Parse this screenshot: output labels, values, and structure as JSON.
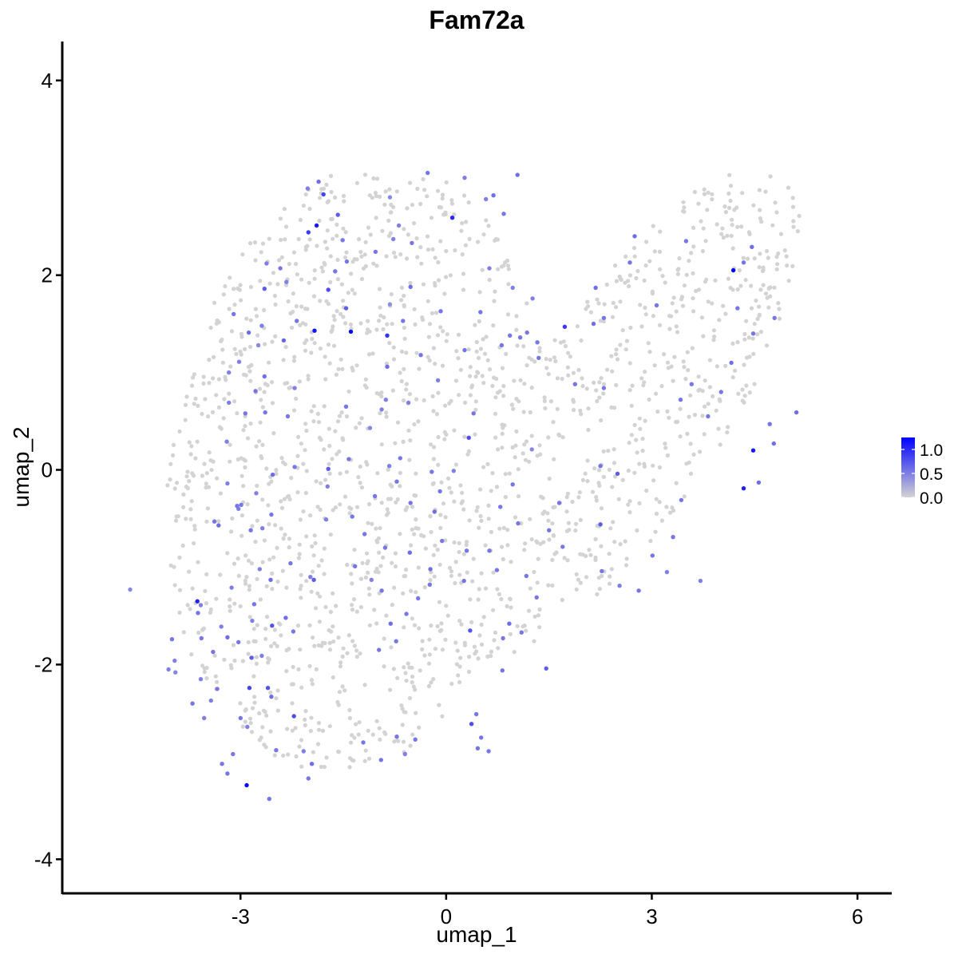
{
  "chart_data": {
    "type": "scatter",
    "title": "Fam72a",
    "xlabel": "umap_1",
    "ylabel": "umap_2",
    "xlim": [
      -5.6,
      6.5
    ],
    "ylim": [
      -4.35,
      4.4
    ],
    "x_ticks": [
      -3,
      0,
      3,
      6
    ],
    "x_tick_labels": [
      "-3",
      "0",
      "3",
      "6"
    ],
    "y_ticks": [
      -4,
      -2,
      0,
      2,
      4
    ],
    "y_tick_labels": [
      "-4",
      "-2",
      "0",
      "2",
      "4"
    ],
    "grid": false,
    "legend_position": "right",
    "color_scale": {
      "low": "#d3d3d3",
      "high": "#0000ff",
      "min": 0,
      "max": 1.25,
      "breaks": [
        0.0,
        0.5,
        1.0
      ],
      "break_labels": [
        "0.0",
        "0.5",
        "1.0"
      ]
    },
    "points": [
      [
        -1.39,
        1.42,
        1.2
      ],
      [
        -1.92,
        1.43,
        1.15
      ],
      [
        -0.86,
        1.38,
        0.95
      ],
      [
        -2.65,
        1.86,
        0.7
      ],
      [
        -1.72,
        1.85,
        0.8
      ],
      [
        -2.88,
        1.41,
        0.6
      ],
      [
        -3.1,
        1.6,
        0.55
      ],
      [
        -2.37,
        1.33,
        0.65
      ],
      [
        -2.01,
        2.44,
        0.9
      ],
      [
        -1.89,
        2.51,
        1.1
      ],
      [
        -1.79,
        2.83,
        0.85
      ],
      [
        -1.58,
        2.62,
        0.7
      ],
      [
        -1.86,
        2.96,
        0.6
      ],
      [
        -0.5,
        2.33,
        0.55
      ],
      [
        -0.52,
        1.88,
        0.6
      ],
      [
        -1.46,
        1.66,
        0.7
      ],
      [
        -0.63,
        1.53,
        0.55
      ],
      [
        -0.82,
        1.7,
        0.4
      ],
      [
        -2.69,
        1.48,
        0.5
      ],
      [
        -2.74,
        1.28,
        0.45
      ],
      [
        -2.33,
        1.93,
        0.5
      ],
      [
        -2.18,
        1.53,
        0.55
      ],
      [
        -0.86,
        1.06,
        0.6
      ],
      [
        -0.37,
        1.18,
        0.55
      ],
      [
        0.09,
        2.59,
        1.0
      ],
      [
        0.27,
        3.0,
        0.5
      ],
      [
        -0.82,
        2.8,
        0.45
      ],
      [
        -0.27,
        3.05,
        0.55
      ],
      [
        0.69,
        2.82,
        0.6
      ],
      [
        0.58,
        2.78,
        0.5
      ],
      [
        1.04,
        3.03,
        0.6
      ],
      [
        0.84,
        2.63,
        0.55
      ],
      [
        -2.65,
        0.96,
        0.6
      ],
      [
        -2.78,
        0.81,
        0.55
      ],
      [
        -3.17,
        0.69,
        0.5
      ],
      [
        -2.93,
        0.58,
        0.55
      ],
      [
        -2.21,
        0.84,
        0.5
      ],
      [
        -2.31,
        0.55,
        0.55
      ],
      [
        -3.2,
        0.29,
        0.5
      ],
      [
        -2.64,
        0.59,
        0.55
      ],
      [
        -1.46,
        0.65,
        0.55
      ],
      [
        -0.88,
        0.72,
        0.5
      ],
      [
        -1.11,
        0.43,
        0.45
      ],
      [
        -1.42,
        0.11,
        0.55
      ],
      [
        -0.55,
        0.69,
        0.5
      ],
      [
        -0.94,
        0.62,
        0.5
      ],
      [
        -2.53,
        -0.05,
        0.6
      ],
      [
        -2.21,
        0.03,
        0.55
      ],
      [
        -1.72,
        0.01,
        0.7
      ],
      [
        -1.73,
        -0.17,
        0.5
      ],
      [
        -3.05,
        -0.37,
        0.55
      ],
      [
        -3.19,
        -0.14,
        0.5
      ],
      [
        -3.38,
        -0.53,
        0.55
      ],
      [
        -3.32,
        -0.57,
        0.6
      ],
      [
        -2.55,
        -0.46,
        0.55
      ],
      [
        -2.68,
        -0.6,
        0.5
      ],
      [
        -2.85,
        -0.62,
        0.55
      ],
      [
        -2.72,
        -1.02,
        0.5
      ],
      [
        -2.27,
        -0.96,
        0.55
      ],
      [
        -1.98,
        -1.1,
        0.5
      ],
      [
        -2.56,
        -1.13,
        0.6
      ],
      [
        -1.93,
        -1.13,
        0.7
      ],
      [
        -2.8,
        -1.38,
        0.55
      ],
      [
        -3.13,
        -1.21,
        0.5
      ],
      [
        -3.63,
        -1.35,
        1.05
      ],
      [
        -3.62,
        -1.47,
        0.55
      ],
      [
        -3.57,
        -1.73,
        0.55
      ],
      [
        -3.28,
        -1.61,
        0.5
      ],
      [
        -3.4,
        -1.87,
        0.55
      ],
      [
        -3.19,
        -1.72,
        0.6
      ],
      [
        -3.03,
        -1.77,
        0.55
      ],
      [
        -2.69,
        -1.91,
        0.5
      ],
      [
        -2.84,
        -1.93,
        0.7
      ],
      [
        -2.83,
        -1.55,
        0.5
      ],
      [
        -2.34,
        -1.52,
        0.6
      ],
      [
        -2.23,
        -1.66,
        0.55
      ],
      [
        -2.54,
        -1.6,
        0.75
      ],
      [
        -3.34,
        -2.25,
        0.55
      ],
      [
        -3.58,
        -2.15,
        0.5
      ],
      [
        -3.7,
        -2.4,
        0.55
      ],
      [
        -3.53,
        -2.55,
        0.5
      ],
      [
        -3.0,
        -2.55,
        0.55
      ],
      [
        -2.87,
        -2.24,
        0.85
      ],
      [
        -2.6,
        -2.24,
        0.75
      ],
      [
        -2.55,
        -2.33,
        0.6
      ],
      [
        -2.22,
        -2.53,
        0.8
      ],
      [
        -3.27,
        -3.02,
        0.55
      ],
      [
        -3.19,
        -3.12,
        0.55
      ],
      [
        -2.91,
        -3.24,
        1.2
      ],
      [
        -2.58,
        -3.38,
        0.55
      ],
      [
        -2.48,
        -2.88,
        0.55
      ],
      [
        -2.08,
        -2.89,
        0.5
      ],
      [
        -1.96,
        -3.02,
        0.6
      ],
      [
        -2.01,
        -3.17,
        0.55
      ],
      [
        -1.21,
        -2.8,
        0.55
      ],
      [
        -0.95,
        -2.98,
        0.55
      ],
      [
        -0.6,
        -2.92,
        0.5
      ],
      [
        -0.45,
        -2.77,
        0.55
      ],
      [
        -0.72,
        -2.74,
        0.55
      ],
      [
        0.37,
        -2.61,
        0.8
      ],
      [
        0.51,
        -2.75,
        0.55
      ],
      [
        0.46,
        -2.86,
        0.55
      ],
      [
        0.62,
        -2.89,
        0.55
      ],
      [
        0.44,
        -2.51,
        0.55
      ],
      [
        -1.75,
        -0.51,
        0.5
      ],
      [
        -1.37,
        -0.48,
        0.55
      ],
      [
        -1.04,
        -0.27,
        0.55
      ],
      [
        -0.67,
        0.12,
        0.55
      ],
      [
        -0.83,
        0.04,
        0.5
      ],
      [
        -0.72,
        -0.12,
        0.55
      ],
      [
        -0.52,
        -0.34,
        0.55
      ],
      [
        -0.21,
        -0.02,
        0.55
      ],
      [
        0.11,
        -0.01,
        0.5
      ],
      [
        0.33,
        0.33,
        0.8
      ],
      [
        -0.09,
        -0.22,
        0.55
      ],
      [
        -0.17,
        -0.43,
        0.6
      ],
      [
        -1.19,
        -0.66,
        0.55
      ],
      [
        -1.33,
        -0.99,
        0.55
      ],
      [
        -1.09,
        -1.13,
        0.5
      ],
      [
        -0.89,
        -0.8,
        0.55
      ],
      [
        -0.53,
        -0.85,
        0.6
      ],
      [
        -0.23,
        -1.02,
        0.6
      ],
      [
        -0.41,
        -1.32,
        0.55
      ],
      [
        -0.24,
        -1.18,
        0.55
      ],
      [
        -0.58,
        -1.48,
        0.55
      ],
      [
        -0.81,
        -1.58,
        0.6
      ],
      [
        -0.73,
        -1.76,
        0.55
      ],
      [
        -0.98,
        -1.85,
        0.55
      ],
      [
        0.3,
        -0.83,
        0.55
      ],
      [
        0.26,
        -1.14,
        0.55
      ],
      [
        0.35,
        -1.65,
        0.75
      ],
      [
        0.83,
        -1.73,
        0.55
      ],
      [
        0.92,
        -1.58,
        0.6
      ],
      [
        1.32,
        -1.31,
        0.55
      ],
      [
        1.1,
        -1.67,
        0.55
      ],
      [
        1.46,
        -2.04,
        0.7
      ],
      [
        1.17,
        -1.09,
        0.55
      ],
      [
        0.74,
        -1.03,
        0.55
      ],
      [
        0.63,
        -0.83,
        0.55
      ],
      [
        1.05,
        -0.55,
        0.55
      ],
      [
        0.79,
        -0.38,
        0.55
      ],
      [
        0.97,
        -0.15,
        0.55
      ],
      [
        1.65,
        -0.34,
        0.55
      ],
      [
        2.25,
        -0.56,
        0.7
      ],
      [
        2.5,
        -0.04,
        0.7
      ],
      [
        2.25,
        0.04,
        0.55
      ],
      [
        1.88,
        0.88,
        0.55
      ],
      [
        2.3,
        0.84,
        0.55
      ],
      [
        1.73,
        1.47,
        0.9
      ],
      [
        2.15,
        1.5,
        0.6
      ],
      [
        2.3,
        1.56,
        0.55
      ],
      [
        2.18,
        1.87,
        0.6
      ],
      [
        2.75,
        2.4,
        0.6
      ],
      [
        2.68,
        2.13,
        0.55
      ],
      [
        3.07,
        1.69,
        0.55
      ],
      [
        3.5,
        2.35,
        0.55
      ],
      [
        4.19,
        2.05,
        1.25
      ],
      [
        4.34,
        2.13,
        0.55
      ],
      [
        4.46,
        2.29,
        0.6
      ],
      [
        4.25,
        1.66,
        0.55
      ],
      [
        4.48,
        1.4,
        0.55
      ],
      [
        4.16,
        1.1,
        0.6
      ],
      [
        4.79,
        1.56,
        0.55
      ],
      [
        3.58,
        0.88,
        0.55
      ],
      [
        3.42,
        0.72,
        0.55
      ],
      [
        3.82,
        0.55,
        0.55
      ],
      [
        4.01,
        0.8,
        0.55
      ],
      [
        4.72,
        0.47,
        0.55
      ],
      [
        5.11,
        0.59,
        0.6
      ],
      [
        4.78,
        0.27,
        0.6
      ],
      [
        4.48,
        0.2,
        1.1
      ],
      [
        4.34,
        -0.19,
        1.05
      ],
      [
        4.56,
        -0.13,
        0.6
      ],
      [
        3.43,
        -0.31,
        0.55
      ],
      [
        3.31,
        -0.69,
        0.55
      ],
      [
        3.01,
        -0.88,
        0.55
      ],
      [
        2.81,
        -1.24,
        0.55
      ],
      [
        2.27,
        -1.04,
        0.55
      ],
      [
        1.7,
        -0.79,
        0.55
      ],
      [
        1.5,
        -0.62,
        0.55
      ],
      [
        -4.61,
        -1.23,
        0.45
      ],
      [
        -3.96,
        -1.96,
        0.5
      ],
      [
        -4.0,
        -1.74,
        0.55
      ],
      [
        -4.05,
        -2.05,
        0.5
      ],
      [
        -3.95,
        -2.08,
        0.45
      ],
      [
        -0.08,
        1.63,
        0.55
      ],
      [
        -0.12,
        0.92,
        0.5
      ],
      [
        0.27,
        1.23,
        0.55
      ],
      [
        0.5,
        1.62,
        0.55
      ],
      [
        0.93,
        1.38,
        0.55
      ],
      [
        0.81,
        1.28,
        0.55
      ],
      [
        1.08,
        1.36,
        0.55
      ],
      [
        1.18,
        1.41,
        0.55
      ],
      [
        1.33,
        1.31,
        0.55
      ],
      [
        1.35,
        1.15,
        0.55
      ],
      [
        -2.42,
        2.07,
        0.55
      ],
      [
        -2.62,
        2.12,
        0.5
      ],
      [
        -2.02,
        2.89,
        0.5
      ],
      [
        -1.62,
        2.04,
        0.55
      ],
      [
        -1.51,
        2.36,
        0.55
      ],
      [
        -1.03,
        2.24,
        0.55
      ],
      [
        -0.69,
        2.51,
        0.5
      ],
      [
        -1.45,
        2.14,
        0.55
      ],
      [
        -0.77,
        2.37,
        0.5
      ],
      [
        0.63,
        2.07,
        0.5
      ],
      [
        0.97,
        1.87,
        0.5
      ],
      [
        1.26,
        1.76,
        0.5
      ],
      [
        -3.02,
        1.11,
        0.5
      ],
      [
        -3.17,
        1.0,
        0.5
      ],
      [
        -2.99,
        -0.36,
        0.55
      ],
      [
        -3.03,
        -0.4,
        0.5
      ],
      [
        -2.77,
        -0.24,
        0.5
      ],
      [
        -3.58,
        -1.39,
        0.5
      ],
      [
        -3.43,
        -2.37,
        0.5
      ],
      [
        -3.11,
        -2.92,
        0.55
      ],
      [
        -2.9,
        -2.64,
        0.5
      ],
      [
        -0.94,
        -1.24,
        0.55
      ],
      [
        0.4,
        0.58,
        0.55
      ],
      [
        -0.06,
        -0.73,
        0.55
      ],
      [
        0.82,
        -2.06,
        0.55
      ],
      [
        1.25,
        0.21,
        0.45
      ],
      [
        2.53,
        -1.19,
        0.5
      ],
      [
        3.71,
        -1.14,
        0.5
      ],
      [
        3.22,
        -1.05,
        0.5
      ]
    ]
  }
}
